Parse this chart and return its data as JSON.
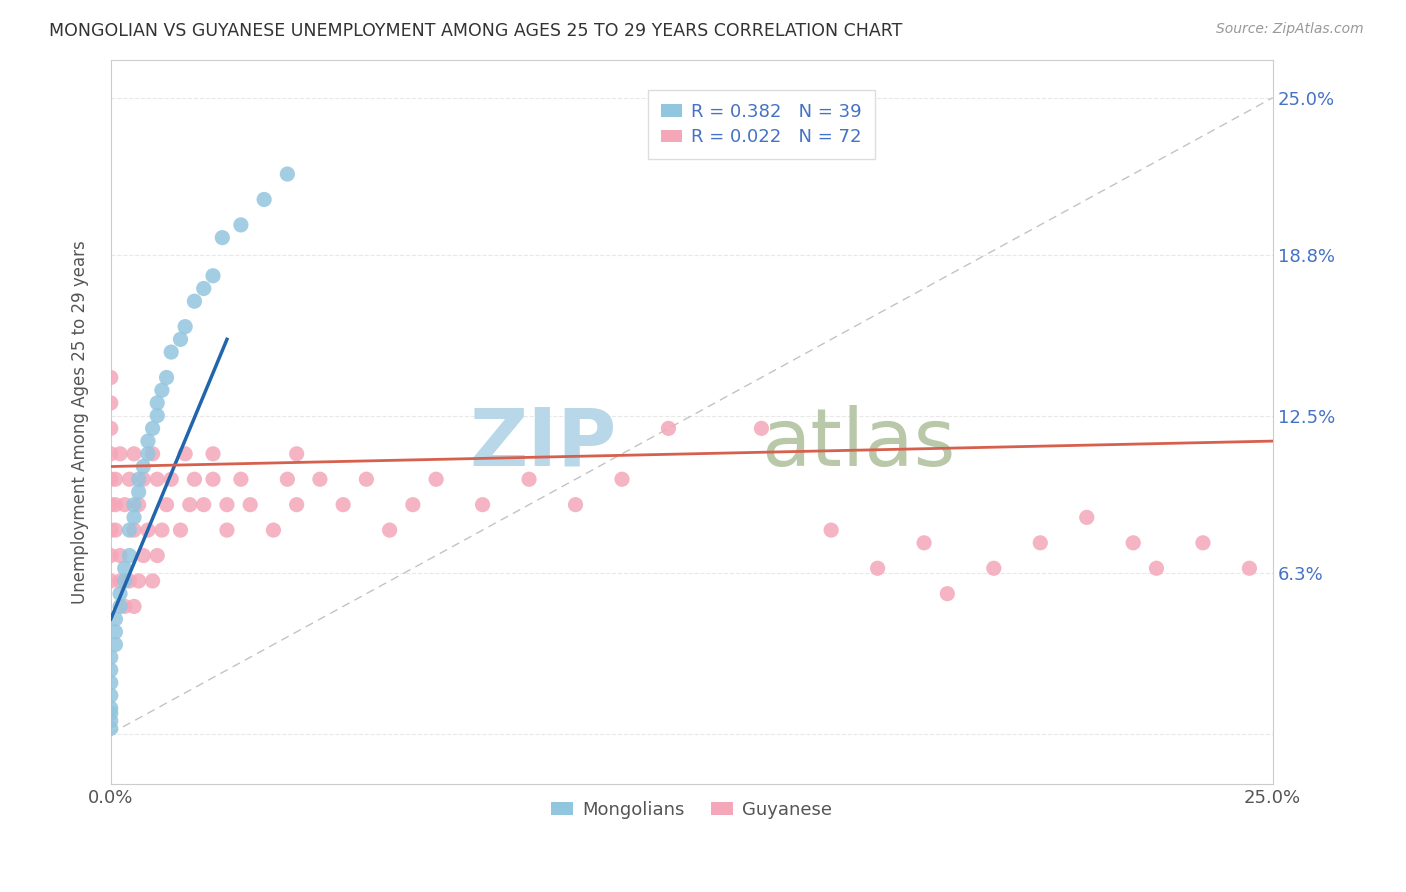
{
  "title": "MONGOLIAN VS GUYANESE UNEMPLOYMENT AMONG AGES 25 TO 29 YEARS CORRELATION CHART",
  "source": "Source: ZipAtlas.com",
  "ylabel": "Unemployment Among Ages 25 to 29 years",
  "xlim": [
    0.0,
    0.25
  ],
  "ylim": [
    -0.02,
    0.265
  ],
  "xtick_positions": [
    0.0,
    0.05,
    0.1,
    0.15,
    0.2,
    0.25
  ],
  "xticklabels": [
    "0.0%",
    "",
    "",
    "",
    "",
    "25.0%"
  ],
  "ytick_positions": [
    0.0,
    0.063,
    0.125,
    0.188,
    0.25
  ],
  "ytick_labels_right": [
    "",
    "6.3%",
    "12.5%",
    "18.8%",
    "25.0%"
  ],
  "mongolian_R": 0.382,
  "mongolian_N": 39,
  "guyanese_R": 0.022,
  "guyanese_N": 72,
  "mongolian_color": "#92c5de",
  "guyanese_color": "#f4a7b9",
  "trend_mongolian_color": "#2166ac",
  "trend_guyanese_color": "#d6604d",
  "diagonal_color": "#aaaaaa",
  "watermark_zip": "ZIP",
  "watermark_atlas": "atlas",
  "watermark_color_zip": "#b8d8ea",
  "watermark_color_atlas": "#b8c8a8",
  "background_color": "#ffffff",
  "grid_color": "#e8e8e8",
  "mongolian_x": [
    0.0,
    0.0,
    0.0,
    0.0,
    0.0,
    0.0,
    0.0,
    0.0,
    0.001,
    0.001,
    0.001,
    0.002,
    0.002,
    0.003,
    0.003,
    0.004,
    0.004,
    0.005,
    0.005,
    0.006,
    0.006,
    0.007,
    0.008,
    0.008,
    0.009,
    0.01,
    0.01,
    0.011,
    0.012,
    0.013,
    0.015,
    0.016,
    0.018,
    0.02,
    0.022,
    0.024,
    0.028,
    0.033,
    0.038
  ],
  "mongolian_y": [
    0.002,
    0.005,
    0.008,
    0.01,
    0.015,
    0.02,
    0.025,
    0.03,
    0.035,
    0.04,
    0.045,
    0.05,
    0.055,
    0.06,
    0.065,
    0.07,
    0.08,
    0.085,
    0.09,
    0.095,
    0.1,
    0.105,
    0.11,
    0.115,
    0.12,
    0.125,
    0.13,
    0.135,
    0.14,
    0.15,
    0.155,
    0.16,
    0.17,
    0.175,
    0.18,
    0.195,
    0.2,
    0.21,
    0.22
  ],
  "guyanese_x": [
    0.0,
    0.0,
    0.0,
    0.0,
    0.0,
    0.0,
    0.0,
    0.0,
    0.0,
    0.001,
    0.001,
    0.001,
    0.002,
    0.002,
    0.002,
    0.003,
    0.003,
    0.004,
    0.004,
    0.005,
    0.005,
    0.005,
    0.006,
    0.006,
    0.007,
    0.007,
    0.008,
    0.009,
    0.009,
    0.01,
    0.01,
    0.011,
    0.012,
    0.013,
    0.015,
    0.016,
    0.017,
    0.018,
    0.02,
    0.022,
    0.022,
    0.025,
    0.025,
    0.028,
    0.03,
    0.035,
    0.038,
    0.04,
    0.04,
    0.045,
    0.05,
    0.055,
    0.06,
    0.065,
    0.07,
    0.08,
    0.09,
    0.1,
    0.11,
    0.12,
    0.14,
    0.155,
    0.165,
    0.175,
    0.18,
    0.19,
    0.2,
    0.21,
    0.22,
    0.225,
    0.235,
    0.245
  ],
  "guyanese_y": [
    0.06,
    0.07,
    0.08,
    0.09,
    0.1,
    0.11,
    0.12,
    0.13,
    0.14,
    0.08,
    0.09,
    0.1,
    0.06,
    0.07,
    0.11,
    0.05,
    0.09,
    0.06,
    0.1,
    0.05,
    0.08,
    0.11,
    0.06,
    0.09,
    0.07,
    0.1,
    0.08,
    0.06,
    0.11,
    0.07,
    0.1,
    0.08,
    0.09,
    0.1,
    0.08,
    0.11,
    0.09,
    0.1,
    0.09,
    0.1,
    0.11,
    0.08,
    0.09,
    0.1,
    0.09,
    0.08,
    0.1,
    0.09,
    0.11,
    0.1,
    0.09,
    0.1,
    0.08,
    0.09,
    0.1,
    0.09,
    0.1,
    0.09,
    0.1,
    0.12,
    0.12,
    0.08,
    0.065,
    0.075,
    0.055,
    0.065,
    0.075,
    0.085,
    0.075,
    0.065,
    0.075,
    0.065
  ],
  "mong_trend_x": [
    0.0,
    0.025
  ],
  "mong_trend_y": [
    0.045,
    0.155
  ],
  "guy_trend_x": [
    0.0,
    0.25
  ],
  "guy_trend_y": [
    0.105,
    0.115
  ]
}
